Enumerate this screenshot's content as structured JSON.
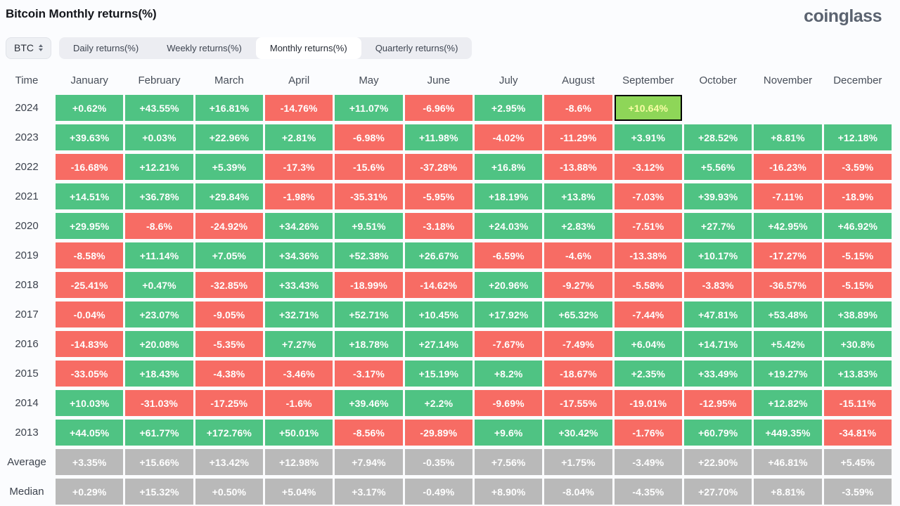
{
  "page": {
    "title": "Bitcoin Monthly returns(%)",
    "logo": "coinglass"
  },
  "controls": {
    "symbol": "BTC",
    "tabs": [
      {
        "label": "Daily returns(%)",
        "active": false
      },
      {
        "label": "Weekly returns(%)",
        "active": false
      },
      {
        "label": "Monthly returns(%)",
        "active": true
      },
      {
        "label": "Quarterly returns(%)",
        "active": false
      }
    ]
  },
  "colors": {
    "green": "#4fc383",
    "red": "#f76c64",
    "summary": "#b9b9b9",
    "highlight_bg": "#8ed658",
    "highlight_text": "#f9fda6"
  },
  "table": {
    "columns": [
      "Time",
      "January",
      "February",
      "March",
      "April",
      "May",
      "June",
      "July",
      "August",
      "September",
      "October",
      "November",
      "December"
    ],
    "highlight": {
      "row": "2024",
      "column": "September"
    },
    "rows": [
      {
        "label": "2024",
        "type": "year",
        "cells": [
          "+0.62%",
          "+43.55%",
          "+16.81%",
          "-14.76%",
          "+11.07%",
          "-6.96%",
          "+2.95%",
          "-8.6%",
          "+10.64%",
          "",
          "",
          ""
        ]
      },
      {
        "label": "2023",
        "type": "year",
        "cells": [
          "+39.63%",
          "+0.03%",
          "+22.96%",
          "+2.81%",
          "-6.98%",
          "+11.98%",
          "-4.02%",
          "-11.29%",
          "+3.91%",
          "+28.52%",
          "+8.81%",
          "+12.18%"
        ]
      },
      {
        "label": "2022",
        "type": "year",
        "cells": [
          "-16.68%",
          "+12.21%",
          "+5.39%",
          "-17.3%",
          "-15.6%",
          "-37.28%",
          "+16.8%",
          "-13.88%",
          "-3.12%",
          "+5.56%",
          "-16.23%",
          "-3.59%"
        ]
      },
      {
        "label": "2021",
        "type": "year",
        "cells": [
          "+14.51%",
          "+36.78%",
          "+29.84%",
          "-1.98%",
          "-35.31%",
          "-5.95%",
          "+18.19%",
          "+13.8%",
          "-7.03%",
          "+39.93%",
          "-7.11%",
          "-18.9%"
        ]
      },
      {
        "label": "2020",
        "type": "year",
        "cells": [
          "+29.95%",
          "-8.6%",
          "-24.92%",
          "+34.26%",
          "+9.51%",
          "-3.18%",
          "+24.03%",
          "+2.83%",
          "-7.51%",
          "+27.7%",
          "+42.95%",
          "+46.92%"
        ]
      },
      {
        "label": "2019",
        "type": "year",
        "cells": [
          "-8.58%",
          "+11.14%",
          "+7.05%",
          "+34.36%",
          "+52.38%",
          "+26.67%",
          "-6.59%",
          "-4.6%",
          "-13.38%",
          "+10.17%",
          "-17.27%",
          "-5.15%"
        ]
      },
      {
        "label": "2018",
        "type": "year",
        "cells": [
          "-25.41%",
          "+0.47%",
          "-32.85%",
          "+33.43%",
          "-18.99%",
          "-14.62%",
          "+20.96%",
          "-9.27%",
          "-5.58%",
          "-3.83%",
          "-36.57%",
          "-5.15%"
        ]
      },
      {
        "label": "2017",
        "type": "year",
        "cells": [
          "-0.04%",
          "+23.07%",
          "-9.05%",
          "+32.71%",
          "+52.71%",
          "+10.45%",
          "+17.92%",
          "+65.32%",
          "-7.44%",
          "+47.81%",
          "+53.48%",
          "+38.89%"
        ]
      },
      {
        "label": "2016",
        "type": "year",
        "cells": [
          "-14.83%",
          "+20.08%",
          "-5.35%",
          "+7.27%",
          "+18.78%",
          "+27.14%",
          "-7.67%",
          "-7.49%",
          "+6.04%",
          "+14.71%",
          "+5.42%",
          "+30.8%"
        ]
      },
      {
        "label": "2015",
        "type": "year",
        "cells": [
          "-33.05%",
          "+18.43%",
          "-4.38%",
          "-3.46%",
          "-3.17%",
          "+15.19%",
          "+8.2%",
          "-18.67%",
          "+2.35%",
          "+33.49%",
          "+19.27%",
          "+13.83%"
        ]
      },
      {
        "label": "2014",
        "type": "year",
        "cells": [
          "+10.03%",
          "-31.03%",
          "-17.25%",
          "-1.6%",
          "+39.46%",
          "+2.2%",
          "-9.69%",
          "-17.55%",
          "-19.01%",
          "-12.95%",
          "+12.82%",
          "-15.11%"
        ]
      },
      {
        "label": "2013",
        "type": "year",
        "cells": [
          "+44.05%",
          "+61.77%",
          "+172.76%",
          "+50.01%",
          "-8.56%",
          "-29.89%",
          "+9.6%",
          "+30.42%",
          "-1.76%",
          "+60.79%",
          "+449.35%",
          "-34.81%"
        ]
      },
      {
        "label": "Average",
        "type": "summary",
        "cells": [
          "+3.35%",
          "+15.66%",
          "+13.42%",
          "+12.98%",
          "+7.94%",
          "-0.35%",
          "+7.56%",
          "+1.75%",
          "-3.49%",
          "+22.90%",
          "+46.81%",
          "+5.45%"
        ]
      },
      {
        "label": "Median",
        "type": "summary",
        "cells": [
          "+0.29%",
          "+15.32%",
          "+0.50%",
          "+5.04%",
          "+3.17%",
          "-0.49%",
          "+8.90%",
          "-8.04%",
          "-4.35%",
          "+27.70%",
          "+8.81%",
          "-3.59%"
        ]
      }
    ]
  },
  "chart_data": {
    "type": "heatmap",
    "title": "Bitcoin Monthly returns(%)",
    "x_categories": [
      "January",
      "February",
      "March",
      "April",
      "May",
      "June",
      "July",
      "August",
      "September",
      "October",
      "November",
      "December"
    ],
    "y_categories": [
      "2024",
      "2023",
      "2022",
      "2021",
      "2020",
      "2019",
      "2018",
      "2017",
      "2016",
      "2015",
      "2014",
      "2013",
      "Average",
      "Median"
    ],
    "unit": "%",
    "legend_position": "none",
    "series": [
      {
        "name": "2024",
        "values": [
          0.62,
          43.55,
          16.81,
          -14.76,
          11.07,
          -6.96,
          2.95,
          -8.6,
          10.64,
          null,
          null,
          null
        ]
      },
      {
        "name": "2023",
        "values": [
          39.63,
          0.03,
          22.96,
          2.81,
          -6.98,
          11.98,
          -4.02,
          -11.29,
          3.91,
          28.52,
          8.81,
          12.18
        ]
      },
      {
        "name": "2022",
        "values": [
          -16.68,
          12.21,
          5.39,
          -17.3,
          -15.6,
          -37.28,
          16.8,
          -13.88,
          -3.12,
          5.56,
          -16.23,
          -3.59
        ]
      },
      {
        "name": "2021",
        "values": [
          14.51,
          36.78,
          29.84,
          -1.98,
          -35.31,
          -5.95,
          18.19,
          13.8,
          -7.03,
          39.93,
          -7.11,
          -18.9
        ]
      },
      {
        "name": "2020",
        "values": [
          29.95,
          -8.6,
          -24.92,
          34.26,
          9.51,
          -3.18,
          24.03,
          2.83,
          -7.51,
          27.7,
          42.95,
          46.92
        ]
      },
      {
        "name": "2019",
        "values": [
          -8.58,
          11.14,
          7.05,
          34.36,
          52.38,
          26.67,
          -6.59,
          -4.6,
          -13.38,
          10.17,
          -17.27,
          -5.15
        ]
      },
      {
        "name": "2018",
        "values": [
          -25.41,
          0.47,
          -32.85,
          33.43,
          -18.99,
          -14.62,
          20.96,
          -9.27,
          -5.58,
          -3.83,
          -36.57,
          -5.15
        ]
      },
      {
        "name": "2017",
        "values": [
          -0.04,
          23.07,
          -9.05,
          32.71,
          52.71,
          10.45,
          17.92,
          65.32,
          -7.44,
          47.81,
          53.48,
          38.89
        ]
      },
      {
        "name": "2016",
        "values": [
          -14.83,
          20.08,
          -5.35,
          7.27,
          18.78,
          27.14,
          -7.67,
          -7.49,
          6.04,
          14.71,
          5.42,
          30.8
        ]
      },
      {
        "name": "2015",
        "values": [
          -33.05,
          18.43,
          -4.38,
          -3.46,
          -3.17,
          15.19,
          8.2,
          -18.67,
          2.35,
          33.49,
          19.27,
          13.83
        ]
      },
      {
        "name": "2014",
        "values": [
          10.03,
          -31.03,
          -17.25,
          -1.6,
          39.46,
          2.2,
          -9.69,
          -17.55,
          -19.01,
          -12.95,
          12.82,
          -15.11
        ]
      },
      {
        "name": "2013",
        "values": [
          44.05,
          61.77,
          172.76,
          50.01,
          -8.56,
          -29.89,
          9.6,
          30.42,
          -1.76,
          60.79,
          449.35,
          -34.81
        ]
      },
      {
        "name": "Average",
        "values": [
          3.35,
          15.66,
          13.42,
          12.98,
          7.94,
          -0.35,
          7.56,
          1.75,
          -3.49,
          22.9,
          46.81,
          5.45
        ]
      },
      {
        "name": "Median",
        "values": [
          0.29,
          15.32,
          0.5,
          5.04,
          3.17,
          -0.49,
          8.9,
          -8.04,
          -4.35,
          27.7,
          8.81,
          -3.59
        ]
      }
    ]
  }
}
